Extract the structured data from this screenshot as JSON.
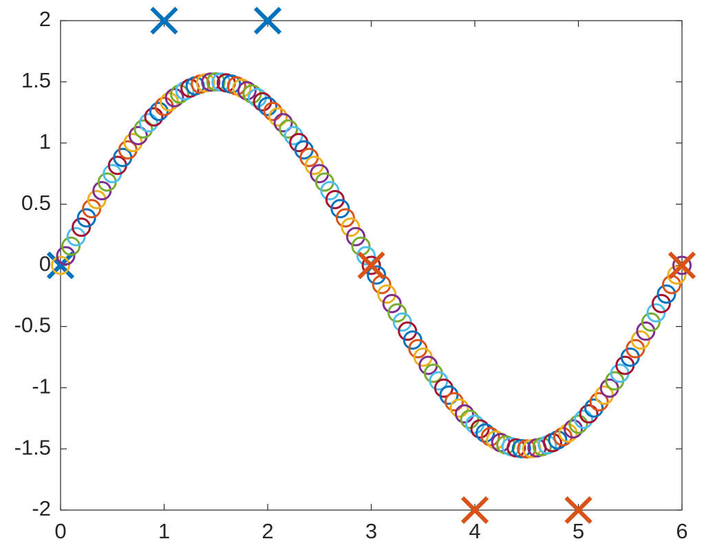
{
  "chart_data": {
    "type": "scatter",
    "x": [
      0,
      0.05,
      0.1,
      0.15,
      0.2,
      0.25,
      0.3,
      0.35,
      0.4,
      0.45,
      0.5,
      0.55,
      0.6,
      0.65,
      0.7,
      0.75,
      0.8,
      0.85,
      0.9,
      0.95,
      1,
      1.05,
      1.1,
      1.15,
      1.2,
      1.25,
      1.3,
      1.35,
      1.4,
      1.45,
      1.5,
      1.55,
      1.6,
      1.65,
      1.7,
      1.75,
      1.8,
      1.85,
      1.9,
      1.95,
      2,
      2.05,
      2.1,
      2.15,
      2.2,
      2.25,
      2.3,
      2.35,
      2.4,
      2.45,
      2.5,
      2.55,
      2.6,
      2.65,
      2.7,
      2.75,
      2.8,
      2.85,
      2.9,
      2.95,
      3,
      3.05,
      3.1,
      3.15,
      3.2,
      3.25,
      3.3,
      3.35,
      3.4,
      3.45,
      3.5,
      3.55,
      3.6,
      3.65,
      3.7,
      3.75,
      3.8,
      3.85,
      3.9,
      3.95,
      4,
      4.05,
      4.1,
      4.15,
      4.2,
      4.25,
      4.3,
      4.35,
      4.4,
      4.45,
      4.5,
      4.55,
      4.6,
      4.65,
      4.7,
      4.75,
      4.8,
      4.85,
      4.9,
      4.95,
      5,
      5.05,
      5.1,
      5.15,
      5.2,
      5.25,
      5.3,
      5.35,
      5.4,
      5.45,
      5.5,
      5.55,
      5.6,
      5.65,
      5.7,
      5.75,
      5.8,
      5.85,
      5.9,
      5.95,
      6
    ],
    "values": [
      0,
      0.0785,
      0.1568,
      0.2346,
      0.3119,
      0.3882,
      0.4635,
      0.5376,
      0.6101,
      0.681,
      0.75,
      0.817,
      0.8817,
      0.944,
      1.0037,
      1.0607,
      1.1147,
      1.1657,
      1.2135,
      1.258,
      1.299,
      1.3365,
      1.3703,
      1.4004,
      1.4266,
      1.4489,
      1.4672,
      1.4815,
      1.4918,
      1.4979,
      1.5,
      1.4979,
      1.4918,
      1.4815,
      1.4672,
      1.4489,
      1.4266,
      1.4004,
      1.3703,
      1.3365,
      1.299,
      1.258,
      1.2135,
      1.1657,
      1.1147,
      1.0607,
      1.0037,
      0.944,
      0.8817,
      0.817,
      0.75,
      0.681,
      0.6101,
      0.5376,
      0.4635,
      0.3882,
      0.3119,
      0.2346,
      0.1568,
      0.0785,
      0,
      -0.0785,
      -0.1568,
      -0.2346,
      -0.3119,
      -0.3882,
      -0.4635,
      -0.5376,
      -0.6101,
      -0.681,
      -0.75,
      -0.817,
      -0.8817,
      -0.944,
      -1.0037,
      -1.0607,
      -1.1147,
      -1.1657,
      -1.2135,
      -1.258,
      -1.299,
      -1.3365,
      -1.3703,
      -1.4004,
      -1.4266,
      -1.4489,
      -1.4672,
      -1.4815,
      -1.4918,
      -1.4979,
      -1.5,
      -1.4979,
      -1.4918,
      -1.4815,
      -1.4672,
      -1.4489,
      -1.4266,
      -1.4004,
      -1.3703,
      -1.3365,
      -1.299,
      -1.258,
      -1.2135,
      -1.1657,
      -1.1147,
      -1.0607,
      -1.0037,
      -0.944,
      -0.8817,
      -0.817,
      -0.75,
      -0.681,
      -0.6101,
      -0.5376,
      -0.4635,
      -0.3882,
      -0.3119,
      -0.2346,
      -0.1568,
      -0.0785,
      0
    ],
    "color_cycle": [
      "#edb120",
      "#7e2f8e",
      "#77ac30",
      "#4dbeee",
      "#a2142f",
      "#0072bd",
      "#d95319"
    ],
    "markers": [
      {
        "color": "#0072bd",
        "x": [
          0,
          1,
          2
        ],
        "values": [
          0,
          2,
          2
        ]
      },
      {
        "color": "#d95319",
        "x": [
          3,
          4,
          5,
          6
        ],
        "values": [
          0,
          -2,
          -2,
          0
        ]
      }
    ],
    "xlim": [
      0,
      6
    ],
    "ylim": [
      -2,
      2
    ],
    "xticks": [
      0,
      1,
      2,
      3,
      4,
      5,
      6
    ],
    "yticks": [
      -2,
      -1.5,
      -1,
      -0.5,
      0,
      0.5,
      1,
      1.5,
      2
    ]
  }
}
